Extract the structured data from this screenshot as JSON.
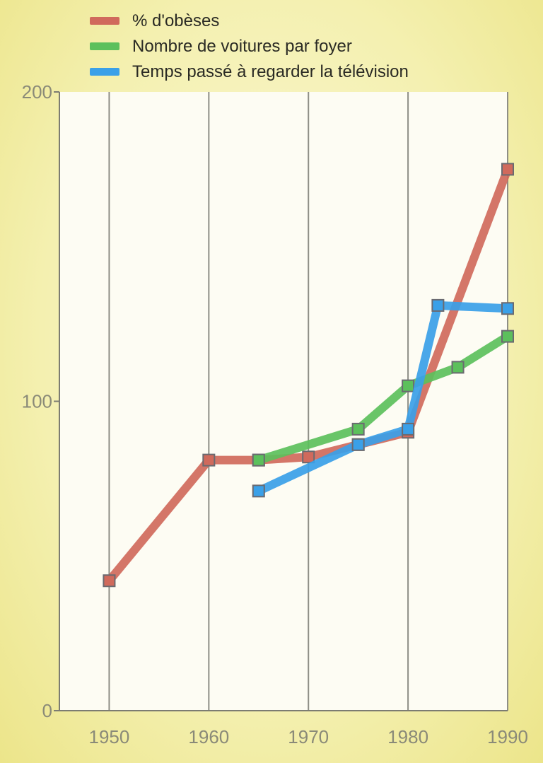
{
  "chart_data": {
    "type": "line",
    "title": "",
    "xlabel": "",
    "ylabel": "",
    "xlim": [
      1945,
      1990
    ],
    "ylim": [
      0,
      200
    ],
    "x_ticks": [
      {
        "value": 1950,
        "label": "1950"
      },
      {
        "value": 1960,
        "label": "1960"
      },
      {
        "value": 1970,
        "label": "1970"
      },
      {
        "value": 1980,
        "label": "1980"
      },
      {
        "value": 1990,
        "label": "1990"
      }
    ],
    "y_ticks": [
      {
        "value": 0,
        "label": "0"
      },
      {
        "value": 100,
        "label": "100"
      },
      {
        "value": 200,
        "label": "200"
      }
    ],
    "grid": "vertical",
    "legend_position": "top",
    "series": [
      {
        "name": "% d'obèses",
        "color": "#d06a5c",
        "points": [
          {
            "x": 1950,
            "y": 42
          },
          {
            "x": 1960,
            "y": 81
          },
          {
            "x": 1965,
            "y": 81
          },
          {
            "x": 1970,
            "y": 82
          },
          {
            "x": 1975,
            "y": 86
          },
          {
            "x": 1980,
            "y": 90
          },
          {
            "x": 1990,
            "y": 175
          }
        ]
      },
      {
        "name": "Nombre de voitures par foyer",
        "color": "#5cc05c",
        "points": [
          {
            "x": 1965,
            "y": 81
          },
          {
            "x": 1975,
            "y": 91
          },
          {
            "x": 1980,
            "y": 105
          },
          {
            "x": 1985,
            "y": 111
          },
          {
            "x": 1990,
            "y": 121
          }
        ]
      },
      {
        "name": "Temps passé à regarder la télévision",
        "color": "#3aa0e8",
        "points": [
          {
            "x": 1965,
            "y": 71
          },
          {
            "x": 1975,
            "y": 86
          },
          {
            "x": 1980,
            "y": 91
          },
          {
            "x": 1983,
            "y": 131
          },
          {
            "x": 1990,
            "y": 130
          }
        ]
      }
    ]
  }
}
